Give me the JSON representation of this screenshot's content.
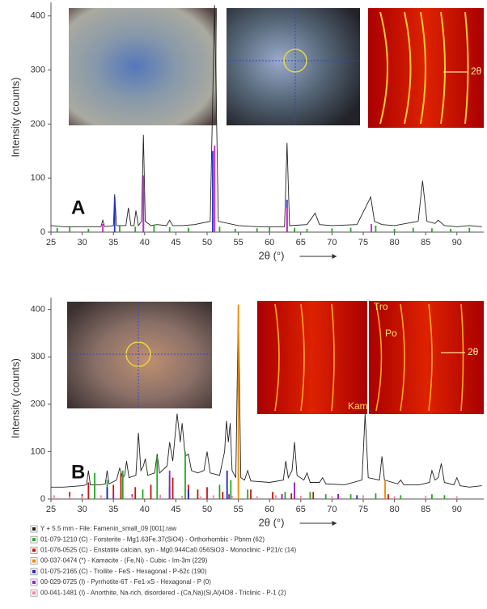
{
  "chart_data": [
    {
      "type": "line",
      "panel_label": "A",
      "xlabel": "2θ (°)",
      "ylabel": "Intensity (counts)",
      "xlim": [
        25,
        94.3
      ],
      "ylim": [
        0,
        425
      ],
      "xticks": [
        25,
        30,
        35,
        40,
        45,
        50,
        55,
        60,
        65,
        70,
        75,
        80,
        85,
        90
      ],
      "yticks": [
        0,
        100,
        200,
        300,
        400
      ],
      "annotations": [
        "2θ"
      ],
      "series": [
        {
          "style": "line",
          "color": "#222222",
          "x": [
            25,
            27,
            30,
            32,
            33,
            33.3,
            33.6,
            35,
            35.2,
            35.5,
            37,
            37.4,
            37.8,
            38.3,
            38.6,
            39,
            39.5,
            39.8,
            40.1,
            41,
            42,
            43.5,
            44,
            44.5,
            46,
            48,
            50.5,
            51.2,
            51.8,
            55,
            58,
            62.4,
            62.8,
            63.2,
            66,
            67.3,
            68,
            70,
            74,
            76.2,
            76.8,
            78,
            80,
            83.8,
            84.5,
            85.2,
            86.5,
            87,
            88,
            90,
            92,
            94
          ],
          "values": [
            12,
            10,
            10,
            10,
            10,
            22,
            10,
            12,
            70,
            12,
            12,
            45,
            12,
            12,
            40,
            12,
            20,
            180,
            20,
            12,
            14,
            12,
            22,
            12,
            12,
            14,
            20,
            420,
            20,
            12,
            10,
            10,
            165,
            12,
            14,
            35,
            14,
            12,
            14,
            65,
            20,
            14,
            12,
            20,
            95,
            20,
            16,
            22,
            12,
            10,
            12,
            10
          ]
        },
        {
          "style": "sticks",
          "color": "#2233cc",
          "x": [
            35.2,
            39.8,
            50.9,
            62.8
          ],
          "values": [
            65,
            75,
            150,
            60
          ]
        },
        {
          "style": "sticks",
          "color": "#cc22cc",
          "x": [
            33.3,
            39.8,
            51.2,
            62.8,
            76.3
          ],
          "values": [
            15,
            105,
            160,
            45,
            15
          ]
        },
        {
          "style": "sticks",
          "color": "#22aa22",
          "x": [
            26,
            28,
            31,
            36,
            38.5,
            41.5,
            44,
            47,
            52,
            54.5,
            58,
            60,
            64,
            66,
            70,
            73,
            77,
            80,
            83,
            86,
            89,
            92
          ],
          "values": [
            8,
            10,
            6,
            12,
            10,
            14,
            9,
            8,
            10,
            6,
            7,
            9,
            8,
            6,
            7,
            8,
            12,
            6,
            8,
            7,
            6,
            8
          ]
        }
      ]
    },
    {
      "type": "line",
      "panel_label": "B",
      "xlabel": "2θ (°)",
      "ylabel": "Intensity (counts)",
      "xlim": [
        25,
        94.3
      ],
      "ylim": [
        0,
        425
      ],
      "xticks": [
        25,
        30,
        35,
        40,
        45,
        50,
        55,
        60,
        65,
        70,
        75,
        80,
        85,
        90
      ],
      "yticks": [
        0,
        100,
        200,
        300,
        400
      ],
      "annotations": [
        "Tro",
        "Po",
        "Kam",
        "2θ"
      ],
      "series": [
        {
          "name": "Y + 5.5 mm - File: Famenin_small_09 [001].raw",
          "style": "line",
          "color": "#222222",
          "x": [
            25,
            27,
            30,
            30.7,
            31,
            31.3,
            33,
            33.7,
            34,
            34.3,
            35.5,
            36,
            36.5,
            36.8,
            37.1,
            37.5,
            38.6,
            39,
            39.4,
            39.8,
            40.1,
            40.5,
            41.6,
            42,
            42.4,
            43.6,
            44,
            44.5,
            45.2,
            45.7,
            46,
            46.5,
            47,
            47.5,
            48.5,
            49.5,
            50,
            50.5,
            52,
            52.8,
            53.1,
            53.4,
            53.7,
            54,
            54.6,
            55,
            55.4,
            56,
            56.5,
            57,
            60,
            62.2,
            62.6,
            63,
            63.6,
            64,
            64.4,
            65.5,
            66,
            66.5,
            68,
            68.5,
            69,
            72,
            74.8,
            75.3,
            75.8,
            77.6,
            78,
            78.4,
            80.5,
            81,
            81.5,
            84,
            85.6,
            86,
            86.5,
            87,
            87.5,
            88,
            89.5,
            90,
            90.5,
            92,
            94
          ],
          "values": [
            25,
            25,
            28,
            30,
            60,
            30,
            30,
            32,
            60,
            32,
            40,
            65,
            45,
            50,
            80,
            45,
            50,
            140,
            60,
            70,
            85,
            50,
            55,
            95,
            55,
            70,
            120,
            80,
            180,
            120,
            160,
            90,
            95,
            60,
            55,
            60,
            100,
            55,
            50,
            100,
            165,
            120,
            160,
            60,
            45,
            410,
            45,
            40,
            60,
            38,
            35,
            40,
            80,
            45,
            60,
            120,
            50,
            40,
            55,
            35,
            35,
            45,
            32,
            30,
            40,
            180,
            45,
            40,
            90,
            40,
            32,
            40,
            30,
            30,
            35,
            60,
            40,
            45,
            75,
            35,
            30,
            45,
            28,
            25,
            28
          ]
        },
        {
          "name": "01-079-1210 (C) - Forsterite - Mg1.63Fe.37(SiO4) - Orthorhombic - Pbnm (62)",
          "style": "sticks",
          "color": "#22aa22",
          "x": [
            32,
            34,
            36.5,
            39.7,
            42,
            44,
            46.5,
            52,
            53.8,
            56.5,
            62.5,
            64,
            66.5,
            69,
            73,
            77,
            81,
            86,
            88
          ],
          "values": [
            55,
            40,
            60,
            20,
            90,
            50,
            100,
            30,
            40,
            20,
            15,
            35,
            15,
            10,
            10,
            12,
            8,
            10,
            8
          ]
        },
        {
          "name": "01-076-0525 (C) - Enstatite calcian, syn - Mg0.944Ca0.056SiO3 - Monoclinic - P21/c (14)",
          "style": "sticks",
          "color": "#cc1111",
          "x": [
            28,
            31,
            35,
            36.2,
            38.5,
            41,
            44.5,
            47,
            48.5,
            50,
            52.5,
            57,
            60.5,
            63.5,
            67,
            71,
            79
          ],
          "values": [
            15,
            35,
            30,
            55,
            25,
            30,
            45,
            30,
            20,
            25,
            15,
            20,
            15,
            12,
            15,
            10,
            10
          ]
        },
        {
          "name": "00-037-0474 (*) - Kamacite - (Fe,Ni) - Cubic - Im-3m (229)",
          "style": "sticks",
          "color": "#ee8800",
          "x": [
            55,
            78.5
          ],
          "values": [
            410,
            40
          ]
        },
        {
          "name": "01-075-2165 (C) - Troilite - FeS - Hexagonal - P-62c (190)",
          "style": "sticks",
          "color": "#2222cc",
          "x": [
            30,
            34,
            44,
            47,
            53.2,
            62,
            71,
            74
          ],
          "values": [
            10,
            25,
            25,
            20,
            60,
            10,
            10,
            8
          ]
        },
        {
          "name": "00-029-0725 (I) - Pyrrhotite-6T - Fe1-xS - Hexagonal - P (0)",
          "style": "sticks",
          "color": "#9922cc",
          "x": [
            35,
            38,
            44,
            53.5,
            62,
            64,
            71
          ],
          "values": [
            12,
            10,
            60,
            10,
            10,
            35,
            8
          ]
        },
        {
          "name": "00-041-1481 (I) - Anorthite, Na-rich, disordered - (Ca,Na)(Si,Al)4O8 - Triclinic - P-1 (2)",
          "style": "sticks",
          "color": "#ee88aa",
          "x": [
            25.5,
            28,
            30,
            33,
            38,
            42.5,
            46,
            49,
            51,
            54,
            58,
            61,
            65,
            70,
            75,
            80,
            85,
            90
          ],
          "values": [
            8,
            6,
            7,
            8,
            6,
            9,
            7,
            6,
            8,
            7,
            6,
            8,
            7,
            6,
            8,
            6,
            7,
            6
          ]
        }
      ]
    }
  ]
}
